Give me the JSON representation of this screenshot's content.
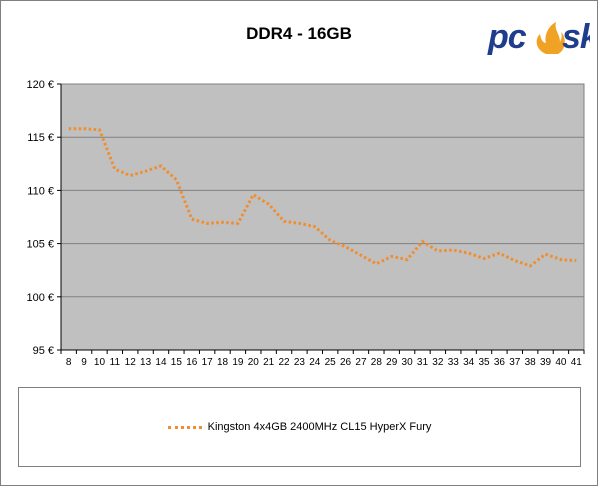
{
  "chart_data": {
    "type": "line",
    "title": "DDR4 - 16GB",
    "xlabel": "",
    "ylabel": "",
    "ylim": [
      95,
      120
    ],
    "yticks": [
      95,
      100,
      105,
      110,
      115,
      120
    ],
    "ytick_suffix": " €",
    "grid": true,
    "legend_position": "bottom",
    "plot_background": "#c0c0c0",
    "x": [
      "8",
      "9",
      "10",
      "11",
      "12",
      "13",
      "14",
      "15",
      "16",
      "17",
      "18",
      "19",
      "20",
      "21",
      "22",
      "23",
      "24",
      "25",
      "26",
      "27",
      "28",
      "29",
      "30",
      "31",
      "32",
      "33",
      "34",
      "35",
      "36",
      "37",
      "38",
      "39",
      "40",
      "41"
    ],
    "series": [
      {
        "name": "Kingston 4x4GB 2400MHz CL15 HyperX Fury",
        "color": "#ef8d2f",
        "values": [
          115.8,
          115.8,
          115.7,
          112.0,
          111.4,
          111.8,
          112.3,
          111.0,
          107.3,
          106.9,
          107.0,
          106.9,
          109.6,
          108.7,
          107.1,
          106.9,
          106.6,
          105.3,
          104.7,
          103.9,
          103.1,
          103.8,
          103.5,
          105.2,
          104.3,
          104.4,
          104.1,
          103.6,
          104.1,
          103.4,
          102.9,
          104.0,
          103.5,
          103.4
        ]
      }
    ]
  },
  "logo": {
    "text": "pcosk",
    "colors": {
      "text": "#1f3d8c",
      "flame": "#f0a224"
    }
  }
}
